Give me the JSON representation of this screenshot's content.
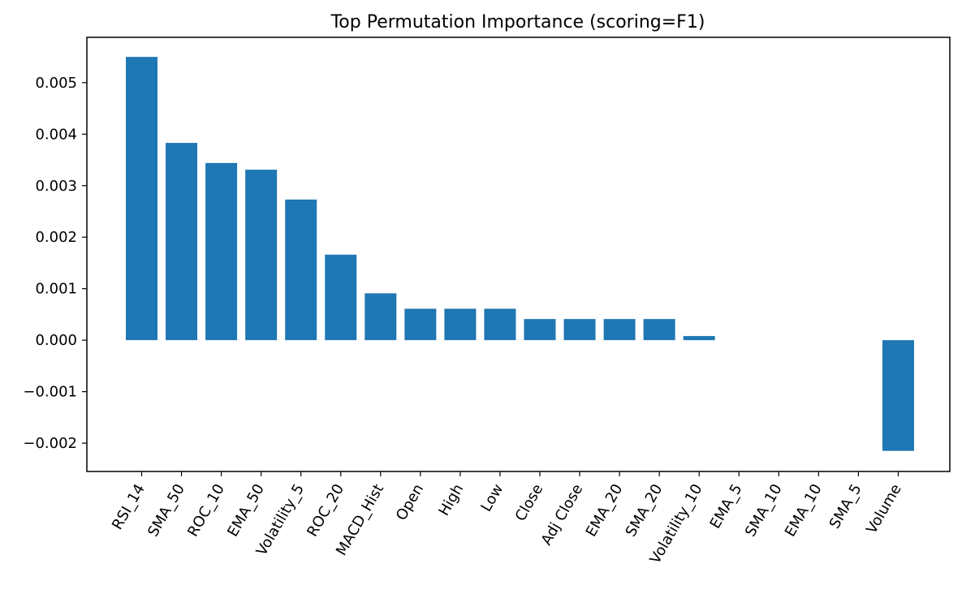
{
  "chart_data": {
    "type": "bar",
    "title": "Top Permutation Importance (scoring=F1)",
    "xlabel": "",
    "ylabel": "",
    "categories": [
      "RSI_14",
      "SMA_50",
      "ROC_10",
      "EMA_50",
      "Volatility_5",
      "ROC_20",
      "MACD_Hist",
      "Open",
      "High",
      "Low",
      "Close",
      "Adj Close",
      "EMA_20",
      "SMA_20",
      "Volatility_10",
      "EMA_5",
      "SMA_10",
      "EMA_10",
      "SMA_5",
      "Volume"
    ],
    "values": [
      0.0055,
      0.00383,
      0.00344,
      0.00331,
      0.00273,
      0.00166,
      0.00091,
      0.00061,
      0.00061,
      0.00061,
      0.00041,
      0.00041,
      0.00041,
      0.00041,
      8e-05,
      0,
      0,
      0,
      0,
      -0.00215
    ],
    "yticks": [
      0.005,
      0.004,
      0.003,
      0.002,
      0.001,
      0.0,
      -0.001,
      -0.002
    ],
    "ytick_labels": [
      "0.005",
      "0.004",
      "0.003",
      "0.002",
      "0.001",
      "0.000",
      "−0.001",
      "−0.002"
    ],
    "ylim": [
      -0.00255,
      0.00588
    ],
    "grid": false,
    "bar_color": "#1f77b4",
    "axis_color": "#000000"
  }
}
